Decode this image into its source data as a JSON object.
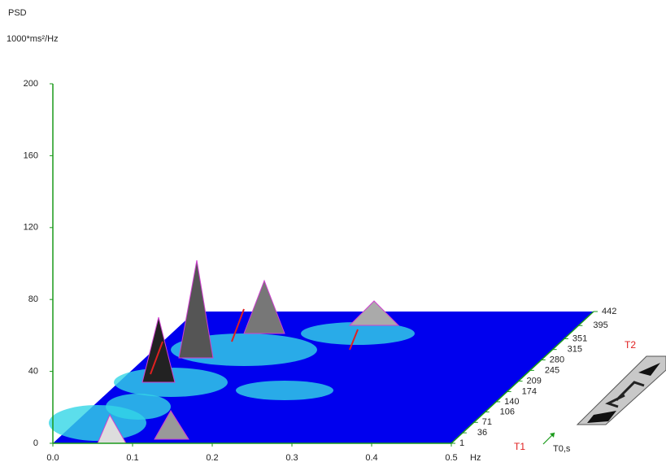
{
  "chart_data": {
    "type": "surface3d",
    "title": "PSD",
    "y_label": "1000*ms²/Hz",
    "x_label": "Hz",
    "depth_label": "T0,s",
    "front_label": "T1",
    "back_label": "T2",
    "xlim": [
      0,
      0.5
    ],
    "xticks": [
      {
        "value": 0,
        "label": "0.0"
      },
      0.1,
      0.2,
      0.3,
      0.4,
      0.5
    ],
    "ylim": [
      0,
      200
    ],
    "yticks": [
      0,
      40,
      80,
      120,
      160,
      200
    ],
    "depth_lim": [
      1,
      442
    ],
    "depth_ticks": [
      1,
      36,
      71,
      106,
      140,
      174,
      209,
      245,
      280,
      315,
      351,
      395,
      442
    ],
    "axis_color": "#1a9a1a",
    "surface_color": "#0000ee"
  }
}
